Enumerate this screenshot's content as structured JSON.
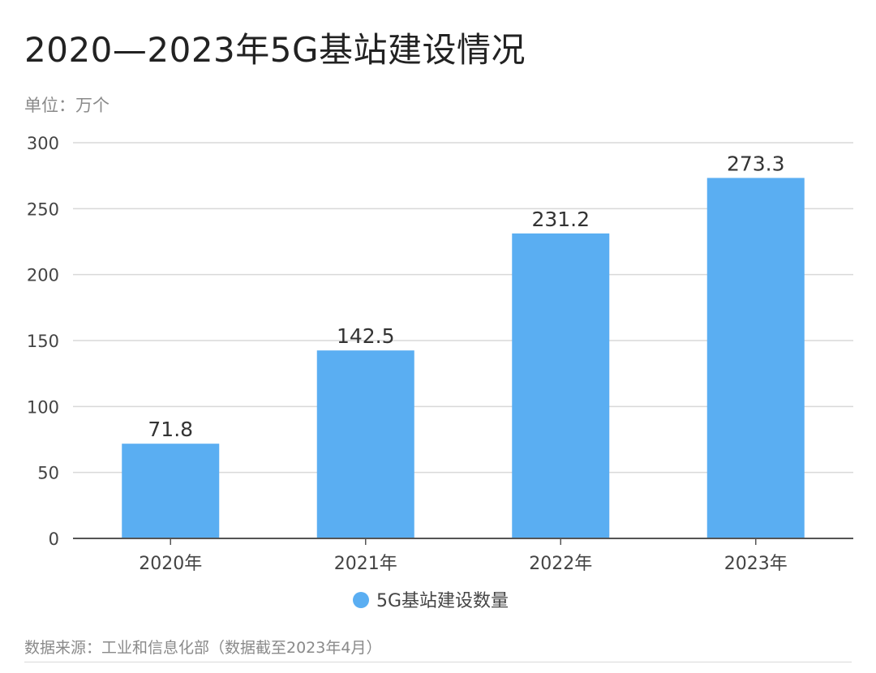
{
  "title": "2020—2023年5G基站建设情况",
  "unit_label": "单位：万个",
  "source_note": "数据来源：工业和信息化部（数据截至2023年4月）",
  "colors": {
    "bar": "#5aaef2",
    "grid": "#d9d9d9",
    "axis": "#555555"
  },
  "chart_data": {
    "type": "bar",
    "title": "2020—2023年5G基站建设情况",
    "categories": [
      "2020年",
      "2021年",
      "2022年",
      "2023年"
    ],
    "series": [
      {
        "name": "5G基站建设数量",
        "values": [
          71.8,
          142.5,
          231.2,
          273.3
        ],
        "data_labels": [
          "71.8",
          "142.5",
          "231.2",
          "273.3"
        ]
      }
    ],
    "ylim": [
      0,
      300
    ],
    "yticks": [
      0,
      50,
      100,
      150,
      200,
      250,
      300
    ],
    "ytick_labels": [
      "0",
      "50",
      "100",
      "150",
      "200",
      "250",
      "300"
    ],
    "xlabel": "",
    "ylabel": "",
    "grid": true,
    "legend": {
      "position": "bottom-center",
      "entries": [
        "5G基站建设数量"
      ]
    }
  }
}
